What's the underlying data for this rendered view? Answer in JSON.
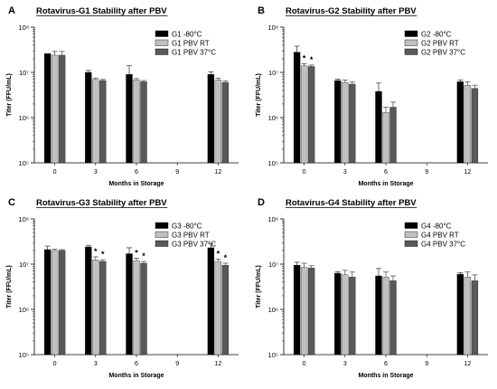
{
  "figure": {
    "panel_labels": [
      "A",
      "B",
      "C",
      "D"
    ],
    "y_axis_label": "Titer (FFU/mL)",
    "x_axis_label": "Months in Storage",
    "colors": {
      "G -80°C": "#000000",
      "PBV RT": "#c0c0c0",
      "PBV 37°C": "#595959"
    }
  },
  "chart_data": [
    {
      "type": "bar",
      "panel": "A",
      "title": "Rotavirus-G1 Stability after PBV",
      "xlabel": "Months in Storage",
      "ylabel": "Titer (FFU/mL)",
      "yscale": "log",
      "ylim": [
        100000,
        100000000
      ],
      "yticks": [
        "10⁵",
        "10⁶",
        "10⁷",
        "10⁸"
      ],
      "categories": [
        "0",
        "3",
        "6",
        "9",
        "12"
      ],
      "legend_position": "top-right",
      "series": [
        {
          "name": "G1 -80°C",
          "values": [
            26000000,
            10000000,
            9000000,
            null,
            9000000
          ],
          "errors": [
            0,
            1000000,
            5000000,
            null,
            1200000
          ]
        },
        {
          "name": "G1 PBV RT",
          "values": [
            24000000,
            7000000,
            6800000,
            null,
            6800000
          ],
          "errors": [
            5000000,
            500000,
            500000,
            null,
            600000
          ]
        },
        {
          "name": "G1 PBV 37°C",
          "values": [
            24000000,
            6600000,
            6200000,
            null,
            6000000
          ],
          "errors": [
            5000000,
            400000,
            400000,
            null,
            500000
          ]
        }
      ],
      "significance": []
    },
    {
      "type": "bar",
      "panel": "B",
      "title": "Rotavirus-G2 Stability after PBV",
      "xlabel": "Months in Storage",
      "ylabel": "Titer (FFU/mL)",
      "yscale": "log",
      "ylim": [
        100000,
        100000000
      ],
      "yticks": [
        "10⁵",
        "10⁶",
        "10⁷",
        "10⁸"
      ],
      "categories": [
        "0",
        "3",
        "6",
        "9",
        "12"
      ],
      "legend_position": "top-right",
      "series": [
        {
          "name": "G2 -80°C",
          "values": [
            28000000,
            6600000,
            3800000,
            null,
            6200000
          ],
          "errors": [
            10000000,
            500000,
            2000000,
            null,
            600000
          ]
        },
        {
          "name": "G2 PBV RT",
          "values": [
            14000000,
            6000000,
            1300000,
            null,
            5200000
          ],
          "errors": [
            1500000,
            800000,
            400000,
            null,
            1000000
          ]
        },
        {
          "name": "G2 PBV 37°C",
          "values": [
            13500000,
            5500000,
            1700000,
            null,
            4400000
          ],
          "errors": [
            1000000,
            600000,
            500000,
            null,
            800000
          ]
        }
      ],
      "significance": [
        {
          "category": "0",
          "series": [
            "G2 PBV RT",
            "G2 PBV 37°C"
          ],
          "mark": "*"
        }
      ]
    },
    {
      "type": "bar",
      "panel": "C",
      "title": "Rotavirus-G3 Stability after PBV",
      "xlabel": "Months in Storage",
      "ylabel": "Titer (FFU/mL)",
      "yscale": "log",
      "ylim": [
        100000,
        100000000
      ],
      "yticks": [
        "10⁵",
        "10⁶",
        "10⁷",
        "10⁸"
      ],
      "categories": [
        "0",
        "3",
        "6",
        "9",
        "12"
      ],
      "legend_position": "top-right",
      "series": [
        {
          "name": "G3 -80°C",
          "values": [
            21000000,
            24000000,
            17000000,
            null,
            23000000
          ],
          "errors": [
            4000000,
            2000000,
            6000000,
            null,
            5000000
          ]
        },
        {
          "name": "G3 PBV RT",
          "values": [
            20000000,
            12500000,
            12000000,
            null,
            11500000
          ],
          "errors": [
            1500000,
            2000000,
            1500000,
            null,
            1500000
          ]
        },
        {
          "name": "G3 PBV 37°C",
          "values": [
            20000000,
            11500000,
            10500000,
            null,
            9500000
          ],
          "errors": [
            1000000,
            1000000,
            1000000,
            null,
            1000000
          ]
        }
      ],
      "significance": [
        {
          "category": "3",
          "series": [
            "G3 PBV RT",
            "G3 PBV 37°C"
          ],
          "mark": "*"
        },
        {
          "category": "6",
          "series": [
            "G3 PBV RT",
            "G3 PBV 37°C"
          ],
          "mark": "*"
        },
        {
          "category": "12",
          "series": [
            "G3 PBV RT",
            "G3 PBV 37°C"
          ],
          "mark": "*"
        }
      ]
    },
    {
      "type": "bar",
      "panel": "D",
      "title": "Rotavirus-G4 Stability after PBV",
      "xlabel": "Months in Storage",
      "ylabel": "Titer (FFU/mL)",
      "yscale": "log",
      "ylim": [
        100000,
        100000000
      ],
      "yticks": [
        "10⁵",
        "10⁶",
        "10⁷",
        "10⁸"
      ],
      "categories": [
        "0",
        "3",
        "6",
        "9",
        "12"
      ],
      "legend_position": "top-right",
      "series": [
        {
          "name": "G4 -80°C",
          "values": [
            9500000,
            6300000,
            5500000,
            null,
            6000000
          ],
          "errors": [
            1500000,
            500000,
            2500000,
            null,
            500000
          ]
        },
        {
          "name": "G4 PBV RT",
          "values": [
            8500000,
            5800000,
            5200000,
            null,
            5200000
          ],
          "errors": [
            2000000,
            1500000,
            1500000,
            null,
            1500000
          ]
        },
        {
          "name": "G4 PBV 37°C",
          "values": [
            8200000,
            5200000,
            4300000,
            null,
            4300000
          ],
          "errors": [
            1000000,
            1500000,
            1200000,
            null,
            1500000
          ]
        }
      ],
      "significance": []
    }
  ]
}
